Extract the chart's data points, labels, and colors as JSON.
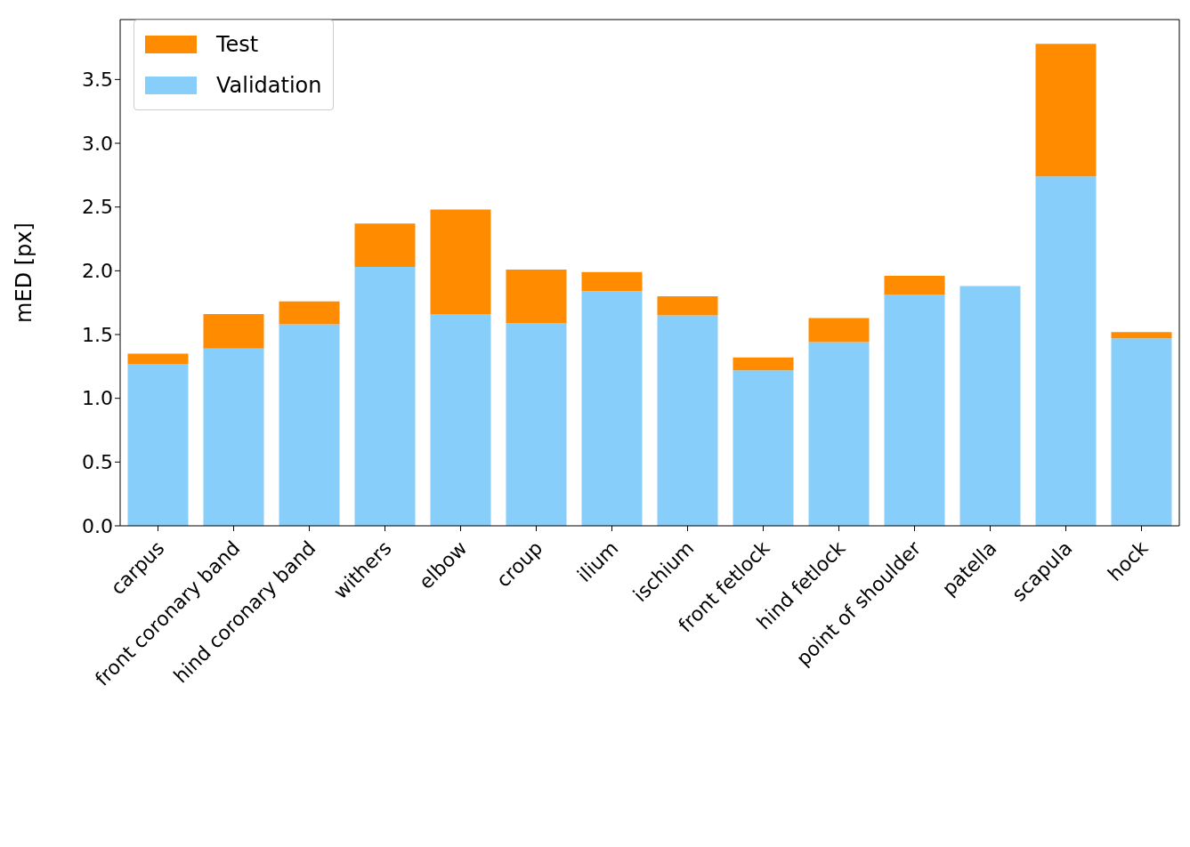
{
  "chart_data": {
    "type": "bar",
    "stacked": true,
    "ylabel": "mED [px]",
    "categories": [
      "carpus",
      "front coronary band",
      "hind coronary band",
      "withers",
      "elbow",
      "croup",
      "ilium",
      "ischium",
      "front fetlock",
      "hind fetlock",
      "point of shoulder",
      "patella",
      "scapula",
      "hock"
    ],
    "series": [
      {
        "name": "Validation",
        "color": "#87cefa",
        "values": [
          1.27,
          1.39,
          1.58,
          2.03,
          1.66,
          1.59,
          1.84,
          1.65,
          1.22,
          1.44,
          1.81,
          1.88,
          2.74,
          1.47
        ]
      },
      {
        "name": "Test",
        "color": "#ff8c00",
        "values": [
          0.08,
          0.27,
          0.18,
          0.34,
          0.82,
          0.42,
          0.15,
          0.15,
          0.1,
          0.19,
          0.15,
          null,
          1.04,
          0.05
        ]
      }
    ],
    "ylim": [
      0,
      3.97
    ],
    "yticks": [
      {
        "value": 0,
        "label": "0.0"
      },
      0.5,
      {
        "value": 1,
        "label": "1.0"
      },
      1.5,
      {
        "value": 2,
        "label": "2.0"
      },
      2.5,
      {
        "value": 3,
        "label": "3.0"
      },
      3.5
    ],
    "legend": "top left"
  }
}
